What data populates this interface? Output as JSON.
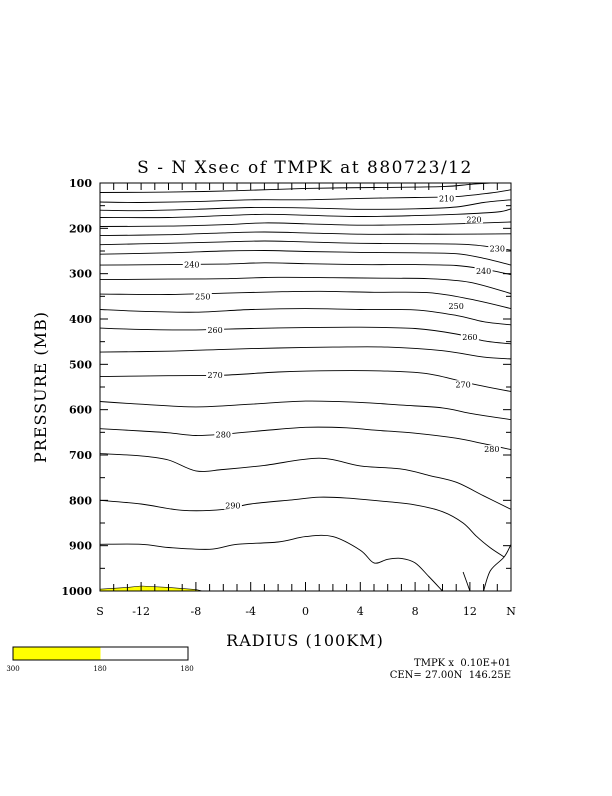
{
  "chart_data": {
    "type": "contour",
    "title": "S - N Xsec of TMPK at 880723/12",
    "xlabel": "RADIUS (100KM)",
    "ylabel": "PRESSURE (MB)",
    "x_start_label": "S",
    "x_end_label": "N",
    "xlim": [
      -15,
      15
    ],
    "ylim": [
      1000,
      100
    ],
    "x_ticks": [
      -12,
      -8,
      -4,
      0,
      4,
      8,
      12
    ],
    "y_ticks": [
      100,
      200,
      300,
      400,
      500,
      600,
      700,
      800,
      900,
      1000
    ],
    "contour_labels": [
      {
        "text": "210",
        "x": 10.3,
        "p": 134
      },
      {
        "text": "220",
        "x": 12.3,
        "p": 180
      },
      {
        "text": "230",
        "x": 14.0,
        "p": 244
      },
      {
        "text": "240",
        "x": -8.3,
        "p": 280
      },
      {
        "text": "240",
        "x": 13.0,
        "p": 294
      },
      {
        "text": "250",
        "x": -7.5,
        "p": 350
      },
      {
        "text": "250",
        "x": 11.0,
        "p": 371
      },
      {
        "text": "260",
        "x": -6.6,
        "p": 424
      },
      {
        "text": "260",
        "x": 12.0,
        "p": 440
      },
      {
        "text": "270",
        "x": -6.6,
        "p": 524
      },
      {
        "text": "270",
        "x": 11.5,
        "p": 544
      },
      {
        "text": "280",
        "x": -6.0,
        "p": 655
      },
      {
        "text": "280",
        "x": 13.6,
        "p": 687
      },
      {
        "text": "290",
        "x": -5.3,
        "p": 811
      }
    ],
    "contours": [
      [
        [
          -15,
          121
        ],
        [
          -10,
          120
        ],
        [
          -5,
          117
        ],
        [
          0,
          112
        ],
        [
          5,
          110
        ],
        [
          10,
          108
        ],
        [
          12,
          103
        ],
        [
          13.5,
          100
        ]
      ],
      [
        [
          -15,
          142
        ],
        [
          -12,
          143
        ],
        [
          -8,
          141
        ],
        [
          -4,
          137
        ],
        [
          0,
          137
        ],
        [
          4,
          134
        ],
        [
          8,
          132
        ],
        [
          11,
          130
        ],
        [
          13.5,
          122
        ],
        [
          15,
          115
        ]
      ],
      [
        [
          -15,
          160
        ],
        [
          -12,
          161
        ],
        [
          -8,
          158
        ],
        [
          -4,
          154
        ],
        [
          0,
          155
        ],
        [
          4,
          158
        ],
        [
          8,
          157
        ],
        [
          11,
          153
        ],
        [
          13,
          143
        ],
        [
          15,
          137
        ]
      ],
      [
        [
          -15,
          176
        ],
        [
          -10,
          176
        ],
        [
          -6,
          172
        ],
        [
          -3,
          169
        ],
        [
          0,
          171
        ],
        [
          4,
          174
        ],
        [
          8,
          172
        ],
        [
          11,
          169
        ],
        [
          14,
          164
        ],
        [
          15,
          157
        ]
      ],
      [
        [
          -15,
          196
        ],
        [
          -10,
          195
        ],
        [
          -6,
          192
        ],
        [
          -3,
          188
        ],
        [
          0,
          190
        ],
        [
          4,
          193
        ],
        [
          8,
          192
        ],
        [
          11,
          190
        ],
        [
          15,
          186
        ]
      ],
      [
        [
          -15,
          216
        ],
        [
          -10,
          214
        ],
        [
          -6,
          210
        ],
        [
          -3,
          208
        ],
        [
          0,
          210
        ],
        [
          4,
          213
        ],
        [
          8,
          213
        ],
        [
          11,
          213
        ],
        [
          15,
          212
        ]
      ],
      [
        [
          -15,
          236
        ],
        [
          -10,
          233
        ],
        [
          -6,
          230
        ],
        [
          -3,
          228
        ],
        [
          0,
          230
        ],
        [
          4,
          233
        ],
        [
          8,
          234
        ],
        [
          12,
          236
        ],
        [
          15,
          248
        ]
      ],
      [
        [
          -15,
          257
        ],
        [
          -10,
          254
        ],
        [
          -6,
          250
        ],
        [
          -3,
          249
        ],
        [
          0,
          251
        ],
        [
          4,
          253
        ],
        [
          8,
          254
        ],
        [
          11,
          256
        ],
        [
          13,
          266
        ],
        [
          15,
          281
        ]
      ],
      [
        [
          -15,
          281
        ],
        [
          -10,
          280
        ],
        [
          -6,
          279
        ],
        [
          -3,
          276
        ],
        [
          0,
          278
        ],
        [
          4,
          280
        ],
        [
          8,
          280
        ],
        [
          11,
          282
        ],
        [
          13,
          290
        ],
        [
          15,
          302
        ]
      ],
      [
        [
          -15,
          313
        ],
        [
          -10,
          312
        ],
        [
          -6,
          311
        ],
        [
          -2,
          308
        ],
        [
          2,
          309
        ],
        [
          6,
          310
        ],
        [
          9,
          311
        ],
        [
          12,
          319
        ],
        [
          15,
          344
        ]
      ],
      [
        [
          -15,
          345
        ],
        [
          -10,
          346
        ],
        [
          -6,
          343
        ],
        [
          -2,
          340
        ],
        [
          1,
          339
        ],
        [
          5,
          341
        ],
        [
          9,
          342
        ],
        [
          12,
          356
        ],
        [
          15,
          377
        ]
      ],
      [
        [
          -15,
          379
        ],
        [
          -12,
          383
        ],
        [
          -8,
          385
        ],
        [
          -4,
          379
        ],
        [
          0,
          377
        ],
        [
          4,
          379
        ],
        [
          8,
          380
        ],
        [
          11,
          392
        ],
        [
          13,
          406
        ],
        [
          15,
          413
        ]
      ],
      [
        [
          -15,
          420
        ],
        [
          -12,
          423
        ],
        [
          -8,
          424
        ],
        [
          -4,
          421
        ],
        [
          0,
          419
        ],
        [
          4,
          418
        ],
        [
          8,
          421
        ],
        [
          11,
          433
        ],
        [
          13,
          448
        ],
        [
          15,
          455
        ]
      ],
      [
        [
          -15,
          473
        ],
        [
          -10,
          471
        ],
        [
          -6,
          467
        ],
        [
          -2,
          464
        ],
        [
          2,
          462
        ],
        [
          6,
          462
        ],
        [
          10,
          470
        ],
        [
          13,
          484
        ],
        [
          15,
          488
        ]
      ],
      [
        [
          -15,
          527
        ],
        [
          -10,
          525
        ],
        [
          -6,
          524
        ],
        [
          -2,
          517
        ],
        [
          2,
          514
        ],
        [
          6,
          515
        ],
        [
          9,
          521
        ],
        [
          12,
          542
        ],
        [
          15,
          560
        ]
      ],
      [
        [
          -15,
          582
        ],
        [
          -12,
          588
        ],
        [
          -8,
          594
        ],
        [
          -4,
          588
        ],
        [
          0,
          581
        ],
        [
          4,
          584
        ],
        [
          7,
          590
        ],
        [
          10,
          596
        ],
        [
          12,
          608
        ],
        [
          15,
          622
        ]
      ],
      [
        [
          -15,
          642
        ],
        [
          -12,
          647
        ],
        [
          -10,
          651
        ],
        [
          -8,
          657
        ],
        [
          -6,
          654
        ],
        [
          -3,
          646
        ],
        [
          0,
          639
        ],
        [
          3,
          640
        ],
        [
          5,
          645
        ],
        [
          8,
          652
        ],
        [
          11,
          663
        ],
        [
          13,
          675
        ],
        [
          15,
          688
        ]
      ],
      [
        [
          -15,
          697
        ],
        [
          -12,
          702
        ],
        [
          -10,
          711
        ],
        [
          -8,
          735
        ],
        [
          -6,
          732
        ],
        [
          -3,
          723
        ],
        [
          1,
          707
        ],
        [
          4,
          724
        ],
        [
          7,
          731
        ],
        [
          9,
          745
        ],
        [
          11,
          760
        ],
        [
          13,
          790
        ],
        [
          15,
          820
        ]
      ],
      [
        [
          -15,
          800
        ],
        [
          -12,
          808
        ],
        [
          -9,
          822
        ],
        [
          -6,
          820
        ],
        [
          -4,
          808
        ],
        [
          -1,
          799
        ],
        [
          1,
          793
        ],
        [
          3,
          795
        ],
        [
          6,
          803
        ],
        [
          8,
          810
        ],
        [
          10,
          825
        ],
        [
          11.5,
          850
        ],
        [
          12.5,
          880
        ],
        [
          13.5,
          905
        ],
        [
          14.5,
          925
        ]
      ],
      [
        [
          -15,
          897
        ],
        [
          -12,
          897
        ],
        [
          -10,
          904
        ],
        [
          -7,
          908
        ],
        [
          -5,
          897
        ],
        [
          -2,
          892
        ],
        [
          0,
          880
        ],
        [
          2,
          880
        ],
        [
          4,
          910
        ],
        [
          5,
          938
        ],
        [
          6,
          930
        ],
        [
          7,
          928
        ],
        [
          8,
          938
        ],
        [
          9,
          968
        ],
        [
          10,
          1000
        ]
      ],
      [
        [
          11.5,
          958
        ],
        [
          12,
          1000
        ]
      ],
      [
        [
          13,
          1000
        ],
        [
          13.5,
          955
        ],
        [
          14.5,
          925
        ],
        [
          15,
          897
        ]
      ]
    ],
    "shaded_region_top": [
      [
        -15,
        996
      ],
      [
        -13,
        992
      ],
      [
        -12,
        989
      ],
      [
        -10,
        992
      ],
      [
        -8,
        997
      ],
      [
        -7.5,
        1000
      ]
    ],
    "shade_color": "#ffff00",
    "colorbar": {
      "labels": [
        "300",
        "180",
        "180"
      ],
      "fill_fraction": 0.5,
      "color": "#ffff00"
    },
    "footer_line1": "TMPK x  0.10E+01",
    "footer_line2": "CEN= 27.00N  146.25E"
  }
}
